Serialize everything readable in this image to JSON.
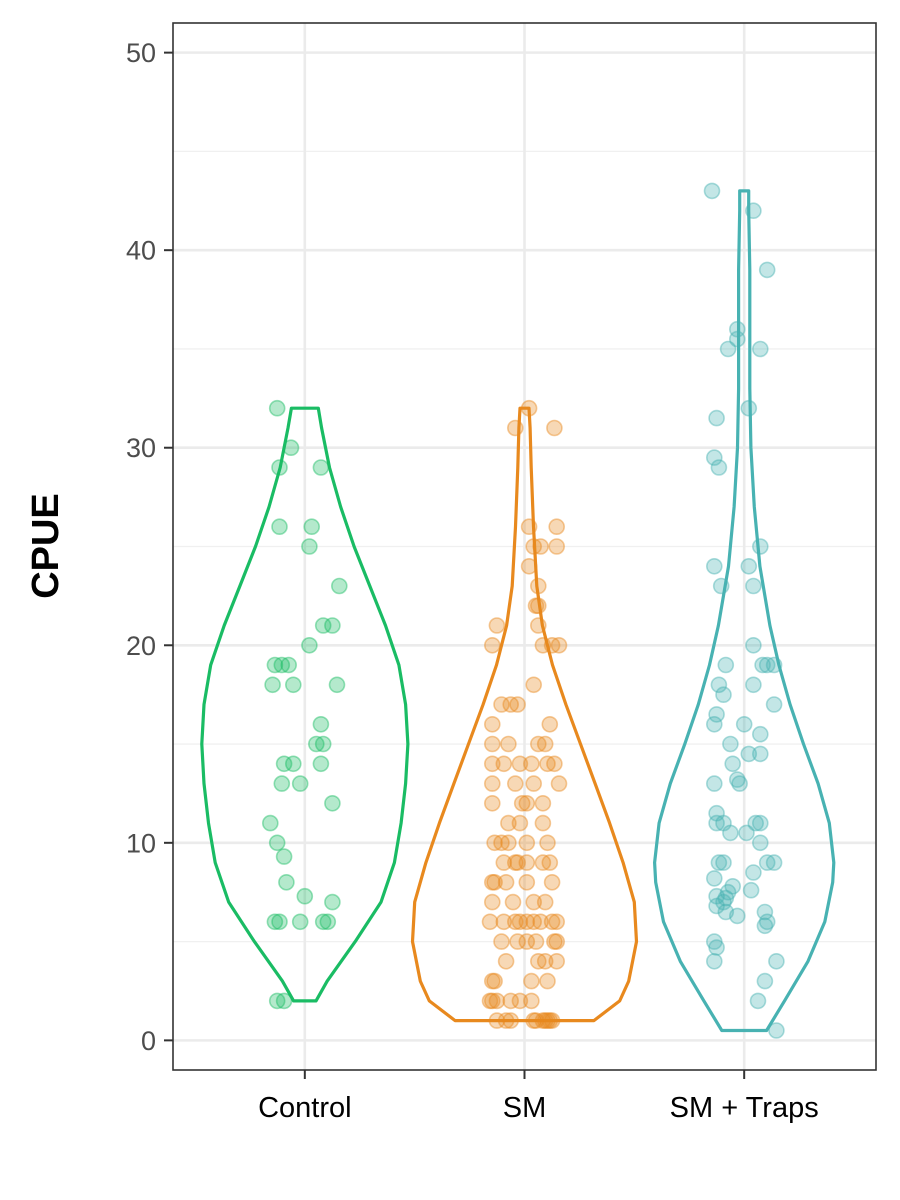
{
  "chart_data": {
    "type": "violin",
    "title": "",
    "xlabel": "",
    "ylabel": "CPUE",
    "ylim": [
      -1.5,
      51.5
    ],
    "y_ticks": [
      0,
      10,
      20,
      30,
      40,
      50
    ],
    "y_tick_labels": [
      "0",
      "10",
      "20",
      "30",
      "40",
      "50"
    ],
    "grid": true,
    "legend": "none",
    "categories": [
      "Control",
      "SM",
      "SM + Traps"
    ],
    "series": [
      {
        "category": "Control",
        "color": "#1abc64",
        "range": [
          2,
          32
        ],
        "profile": [
          [
            2,
            0.1
          ],
          [
            3,
            0.2
          ],
          [
            5,
            0.45
          ],
          [
            7,
            0.68
          ],
          [
            9,
            0.8
          ],
          [
            11,
            0.86
          ],
          [
            13,
            0.9
          ],
          [
            15,
            0.92
          ],
          [
            17,
            0.9
          ],
          [
            19,
            0.84
          ],
          [
            21,
            0.72
          ],
          [
            23,
            0.58
          ],
          [
            25,
            0.44
          ],
          [
            27,
            0.32
          ],
          [
            29,
            0.22
          ],
          [
            31,
            0.15
          ],
          [
            32,
            0.12
          ]
        ],
        "points": [
          [
            -0.12,
            32
          ],
          [
            -0.06,
            30
          ],
          [
            -0.11,
            29
          ],
          [
            0.07,
            29
          ],
          [
            -0.11,
            26
          ],
          [
            0.03,
            26
          ],
          [
            0.02,
            25
          ],
          [
            0.15,
            23
          ],
          [
            0.08,
            21
          ],
          [
            0.12,
            21
          ],
          [
            0.02,
            20
          ],
          [
            -0.13,
            19
          ],
          [
            -0.1,
            19
          ],
          [
            -0.07,
            19
          ],
          [
            -0.14,
            18
          ],
          [
            -0.05,
            18
          ],
          [
            0.14,
            18
          ],
          [
            0.07,
            16
          ],
          [
            0.05,
            15
          ],
          [
            0.08,
            15
          ],
          [
            -0.09,
            14
          ],
          [
            -0.05,
            14
          ],
          [
            0.07,
            14
          ],
          [
            -0.1,
            13
          ],
          [
            -0.02,
            13
          ],
          [
            0.12,
            12
          ],
          [
            -0.15,
            11
          ],
          [
            -0.12,
            10
          ],
          [
            -0.09,
            9.3
          ],
          [
            -0.08,
            8
          ],
          [
            0,
            7.3
          ],
          [
            0.12,
            7
          ],
          [
            -0.13,
            6
          ],
          [
            -0.11,
            6
          ],
          [
            -0.02,
            6
          ],
          [
            0.08,
            6
          ],
          [
            0.1,
            6
          ],
          [
            -0.12,
            2
          ],
          [
            -0.09,
            2
          ]
        ]
      },
      {
        "category": "SM",
        "color": "#e8891e",
        "range": [
          1,
          32
        ],
        "profile": [
          [
            1,
            0.62
          ],
          [
            2,
            0.85
          ],
          [
            3,
            0.93
          ],
          [
            5,
            1.0
          ],
          [
            7,
            0.98
          ],
          [
            9,
            0.88
          ],
          [
            11,
            0.76
          ],
          [
            13,
            0.63
          ],
          [
            15,
            0.5
          ],
          [
            17,
            0.37
          ],
          [
            19,
            0.25
          ],
          [
            21,
            0.16
          ],
          [
            23,
            0.11
          ],
          [
            26,
            0.08
          ],
          [
            29,
            0.06
          ],
          [
            31,
            0.05
          ],
          [
            32,
            0.04
          ]
        ],
        "points": [
          [
            0.02,
            32
          ],
          [
            -0.04,
            31
          ],
          [
            0.13,
            31
          ],
          [
            0.02,
            26
          ],
          [
            0.14,
            26
          ],
          [
            0.04,
            25
          ],
          [
            0.07,
            25
          ],
          [
            0.14,
            25
          ],
          [
            0.02,
            24
          ],
          [
            0.06,
            23
          ],
          [
            0.05,
            22
          ],
          [
            0.06,
            22
          ],
          [
            0.06,
            21
          ],
          [
            -0.12,
            21
          ],
          [
            0.08,
            20
          ],
          [
            -0.14,
            20
          ],
          [
            0.12,
            20
          ],
          [
            0.15,
            20
          ],
          [
            0.04,
            18
          ],
          [
            -0.1,
            17
          ],
          [
            -0.06,
            17
          ],
          [
            -0.03,
            17
          ],
          [
            0.11,
            16
          ],
          [
            -0.14,
            16
          ],
          [
            -0.14,
            15
          ],
          [
            -0.07,
            15
          ],
          [
            0.06,
            15
          ],
          [
            0.09,
            15
          ],
          [
            -0.14,
            14
          ],
          [
            -0.09,
            14
          ],
          [
            -0.02,
            14
          ],
          [
            0.03,
            14
          ],
          [
            0.1,
            14
          ],
          [
            0.13,
            14
          ],
          [
            -0.14,
            13
          ],
          [
            -0.04,
            13
          ],
          [
            0.04,
            13
          ],
          [
            0.15,
            13
          ],
          [
            -0.14,
            12
          ],
          [
            -0.01,
            12
          ],
          [
            0.01,
            12
          ],
          [
            0.08,
            12
          ],
          [
            -0.07,
            11
          ],
          [
            -0.02,
            11
          ],
          [
            0.08,
            11
          ],
          [
            -0.13,
            10
          ],
          [
            -0.1,
            10
          ],
          [
            -0.07,
            10
          ],
          [
            0.01,
            10
          ],
          [
            0.1,
            10
          ],
          [
            -0.09,
            9
          ],
          [
            -0.04,
            9
          ],
          [
            -0.03,
            9
          ],
          [
            0.01,
            9
          ],
          [
            0.08,
            9
          ],
          [
            0.11,
            9
          ],
          [
            -0.14,
            8
          ],
          [
            -0.13,
            8
          ],
          [
            -0.08,
            8
          ],
          [
            0.01,
            8
          ],
          [
            0.12,
            8
          ],
          [
            -0.14,
            7
          ],
          [
            -0.05,
            7
          ],
          [
            0.04,
            7
          ],
          [
            0.09,
            7
          ],
          [
            -0.15,
            6
          ],
          [
            -0.09,
            6
          ],
          [
            -0.04,
            6
          ],
          [
            -0.02,
            6
          ],
          [
            0.01,
            6
          ],
          [
            0.04,
            6
          ],
          [
            0.07,
            6
          ],
          [
            0.12,
            6
          ],
          [
            0.14,
            6
          ],
          [
            -0.1,
            5
          ],
          [
            -0.03,
            5
          ],
          [
            0.01,
            5
          ],
          [
            0.05,
            5
          ],
          [
            0.13,
            5
          ],
          [
            0.14,
            5
          ],
          [
            0.06,
            4
          ],
          [
            0.09,
            4
          ],
          [
            0.14,
            4
          ],
          [
            -0.08,
            4
          ],
          [
            -0.13,
            3
          ],
          [
            -0.14,
            3
          ],
          [
            0.03,
            3
          ],
          [
            0.1,
            3
          ],
          [
            -0.15,
            2
          ],
          [
            -0.14,
            2
          ],
          [
            -0.12,
            2
          ],
          [
            -0.06,
            2
          ],
          [
            -0.02,
            2
          ],
          [
            0.03,
            2
          ],
          [
            -0.12,
            1
          ],
          [
            -0.06,
            1
          ],
          [
            0.04,
            1
          ],
          [
            0.05,
            1
          ],
          [
            0.08,
            1
          ],
          [
            0.09,
            1
          ],
          [
            0.1,
            1
          ],
          [
            0.11,
            1
          ],
          [
            0.12,
            1
          ],
          [
            -0.08,
            1
          ]
        ]
      },
      {
        "category": "SM + Traps",
        "color": "#48b2b2",
        "range": [
          0.5,
          43
        ],
        "profile": [
          [
            0.5,
            0.2
          ],
          [
            2,
            0.36
          ],
          [
            4,
            0.57
          ],
          [
            6,
            0.72
          ],
          [
            8,
            0.79
          ],
          [
            9,
            0.8
          ],
          [
            11,
            0.76
          ],
          [
            13,
            0.66
          ],
          [
            15,
            0.53
          ],
          [
            17,
            0.41
          ],
          [
            19,
            0.31
          ],
          [
            21,
            0.23
          ],
          [
            24,
            0.14
          ],
          [
            27,
            0.09
          ],
          [
            30,
            0.06
          ],
          [
            33,
            0.05
          ],
          [
            36,
            0.05
          ],
          [
            39,
            0.05
          ],
          [
            42,
            0.04
          ],
          [
            43,
            0.04
          ]
        ],
        "points": [
          [
            -0.14,
            43
          ],
          [
            0.04,
            42
          ],
          [
            0.1,
            39
          ],
          [
            -0.03,
            36
          ],
          [
            -0.03,
            35.5
          ],
          [
            -0.07,
            35
          ],
          [
            0.07,
            35
          ],
          [
            0.02,
            32
          ],
          [
            -0.12,
            31.5
          ],
          [
            -0.13,
            29.5
          ],
          [
            -0.11,
            29
          ],
          [
            0.07,
            25
          ],
          [
            -0.13,
            24
          ],
          [
            0.02,
            24
          ],
          [
            -0.1,
            23
          ],
          [
            0.04,
            23
          ],
          [
            0.04,
            20
          ],
          [
            0.1,
            19
          ],
          [
            0.13,
            19
          ],
          [
            0.08,
            19
          ],
          [
            -0.08,
            19
          ],
          [
            -0.11,
            18
          ],
          [
            0.04,
            18
          ],
          [
            -0.09,
            17.5
          ],
          [
            0.13,
            17
          ],
          [
            -0.12,
            16.5
          ],
          [
            -0.13,
            16
          ],
          [
            0,
            16
          ],
          [
            0.07,
            15.5
          ],
          [
            -0.06,
            15
          ],
          [
            0.02,
            14.5
          ],
          [
            0.07,
            14.5
          ],
          [
            -0.05,
            14
          ],
          [
            -0.03,
            13.2
          ],
          [
            -0.02,
            13
          ],
          [
            -0.13,
            13
          ],
          [
            -0.12,
            11.5
          ],
          [
            -0.12,
            11
          ],
          [
            -0.09,
            11
          ],
          [
            0.05,
            11
          ],
          [
            0.07,
            11
          ],
          [
            0.01,
            10.5
          ],
          [
            -0.06,
            10.5
          ],
          [
            0.07,
            10
          ],
          [
            -0.11,
            9
          ],
          [
            -0.09,
            9
          ],
          [
            0.1,
            9
          ],
          [
            0.13,
            9
          ],
          [
            0.04,
            8.5
          ],
          [
            -0.13,
            8.2
          ],
          [
            -0.05,
            7.8
          ],
          [
            -0.07,
            7.5
          ],
          [
            0.03,
            7.6
          ],
          [
            -0.12,
            7.3
          ],
          [
            -0.08,
            7.2
          ],
          [
            -0.09,
            7
          ],
          [
            -0.12,
            6.8
          ],
          [
            -0.08,
            6.5
          ],
          [
            -0.03,
            6.3
          ],
          [
            0.09,
            6.5
          ],
          [
            0.1,
            6
          ],
          [
            0.09,
            5.8
          ],
          [
            -0.13,
            5
          ],
          [
            -0.12,
            4.7
          ],
          [
            -0.13,
            4
          ],
          [
            0.14,
            4
          ],
          [
            0.09,
            3
          ],
          [
            0.06,
            2
          ],
          [
            0.14,
            0.5
          ]
        ]
      }
    ]
  }
}
